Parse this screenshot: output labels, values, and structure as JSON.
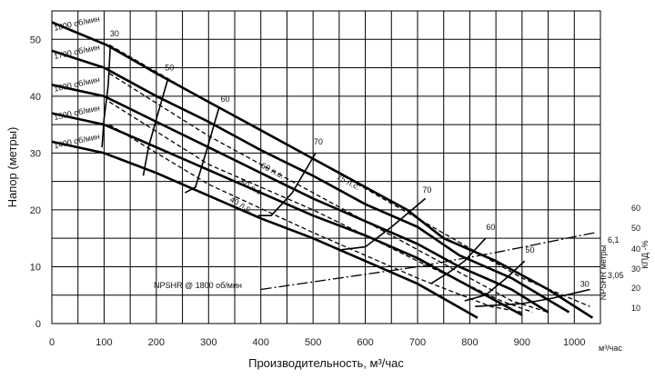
{
  "chart_data": {
    "type": "line",
    "title": "",
    "xlabel": "Производительность, м³/час",
    "ylabel": "Напор (метры)",
    "xlim": [
      0,
      1050
    ],
    "ylim": [
      0,
      55
    ],
    "x_ticks": [
      "0",
      "100",
      "200",
      "300",
      "400",
      "500",
      "600",
      "700",
      "800",
      "900",
      "1000"
    ],
    "y_ticks": [
      "0",
      "10",
      "20",
      "30",
      "40",
      "50"
    ],
    "x_unit_label": "м³/час",
    "right_axis_label": "КПД -%",
    "right_axis_ticks": [
      "10",
      "20",
      "30",
      "40",
      "50",
      "60"
    ],
    "npshr_axis_label": "NPSHR метры",
    "npshr_ticks": [
      "3,05",
      "6,1"
    ],
    "grid": true,
    "speed_curves": [
      {
        "name": "1800 об/мин",
        "points": [
          [
            0,
            53
          ],
          [
            105,
            49
          ],
          [
            200,
            44
          ],
          [
            300,
            39
          ],
          [
            400,
            34
          ],
          [
            500,
            29
          ],
          [
            600,
            24
          ],
          [
            680,
            20
          ],
          [
            750,
            15
          ],
          [
            850,
            11
          ],
          [
            950,
            6
          ],
          [
            1035,
            1
          ]
        ]
      },
      {
        "name": "1700 об/мин",
        "points": [
          [
            0,
            48
          ],
          [
            100,
            45
          ],
          [
            200,
            40
          ],
          [
            300,
            35.5
          ],
          [
            400,
            30.5
          ],
          [
            500,
            26
          ],
          [
            600,
            21
          ],
          [
            700,
            17
          ],
          [
            780,
            12
          ],
          [
            880,
            8
          ],
          [
            990,
            2
          ]
        ]
      },
      {
        "name": "1600 об/мин",
        "points": [
          [
            0,
            42
          ],
          [
            100,
            40
          ],
          [
            200,
            35.5
          ],
          [
            300,
            31
          ],
          [
            400,
            26.5
          ],
          [
            500,
            22
          ],
          [
            600,
            18
          ],
          [
            700,
            14
          ],
          [
            780,
            10
          ],
          [
            880,
            6
          ],
          [
            950,
            2
          ]
        ]
      },
      {
        "name": "1500 об/мин",
        "points": [
          [
            0,
            37
          ],
          [
            100,
            35
          ],
          [
            200,
            31
          ],
          [
            300,
            27
          ],
          [
            400,
            23
          ],
          [
            500,
            19
          ],
          [
            600,
            15.5
          ],
          [
            700,
            11.5
          ],
          [
            780,
            7.5
          ],
          [
            900,
            1.5
          ]
        ]
      },
      {
        "name": "1400 об/мин",
        "points": [
          [
            0,
            32
          ],
          [
            100,
            30
          ],
          [
            200,
            26.5
          ],
          [
            300,
            22.5
          ],
          [
            400,
            18.5
          ],
          [
            500,
            15
          ],
          [
            600,
            11
          ],
          [
            700,
            7
          ],
          [
            815,
            1
          ]
        ]
      }
    ],
    "power_lines": [
      {
        "name": "75 л.с.",
        "points": [
          [
            110,
            49
          ],
          [
            300,
            39
          ],
          [
            500,
            29
          ],
          [
            700,
            18.5
          ],
          [
            900,
            8
          ],
          [
            1030,
            3
          ]
        ]
      },
      {
        "name": "60 л.с.",
        "points": [
          [
            110,
            44
          ],
          [
            300,
            33
          ],
          [
            500,
            23
          ],
          [
            700,
            13
          ],
          [
            880,
            4
          ],
          [
            950,
            2
          ]
        ]
      },
      {
        "name": "50 л.с.",
        "points": [
          [
            110,
            39
          ],
          [
            300,
            28
          ],
          [
            500,
            20
          ],
          [
            700,
            11
          ],
          [
            860,
            4
          ],
          [
            920,
            2
          ]
        ]
      },
      {
        "name": "40 л.с.",
        "points": [
          [
            110,
            35
          ],
          [
            300,
            24.5
          ],
          [
            500,
            16
          ],
          [
            700,
            8
          ],
          [
            840,
            3
          ],
          [
            900,
            2
          ]
        ]
      }
    ],
    "efficiency_curves": [
      {
        "name": "30",
        "points": [
          [
            112,
            49
          ],
          [
            108,
            42
          ],
          [
            100,
            36
          ],
          [
            96,
            31
          ]
        ]
      },
      {
        "name": "50",
        "points": [
          [
            222,
            43
          ],
          [
            200,
            36
          ],
          [
            185,
            31
          ],
          [
            175,
            26
          ]
        ]
      },
      {
        "name": "60",
        "points": [
          [
            320,
            38
          ],
          [
            298,
            31
          ],
          [
            275,
            24
          ],
          [
            255,
            23
          ]
        ]
      },
      {
        "name": "70",
        "points": [
          [
            505,
            30
          ],
          [
            460,
            23
          ],
          [
            420,
            19
          ],
          [
            395,
            19
          ]
        ]
      },
      {
        "name": "70",
        "points": [
          [
            715,
            22
          ],
          [
            650,
            17
          ],
          [
            600,
            13.5
          ],
          [
            555,
            13
          ]
        ]
      },
      {
        "name": "60",
        "points": [
          [
            830,
            15
          ],
          [
            790,
            11
          ],
          [
            760,
            9
          ],
          [
            725,
            7
          ]
        ]
      },
      {
        "name": "50",
        "points": [
          [
            905,
            11
          ],
          [
            870,
            8
          ],
          [
            830,
            5
          ],
          [
            790,
            4
          ]
        ]
      },
      {
        "name": "30",
        "points": [
          [
            1030,
            6
          ],
          [
            960,
            4.5
          ],
          [
            900,
            3.5
          ],
          [
            810,
            3
          ]
        ]
      }
    ],
    "npshr_curve": {
      "name": "NPSHR @ 1800 об/мин",
      "points": [
        [
          400,
          6
        ],
        [
          550,
          8
        ],
        [
          700,
          10
        ],
        [
          850,
          12.5
        ],
        [
          1040,
          16
        ]
      ]
    },
    "annotations": [
      "1800 об/мин",
      "1700 об/мин",
      "1600 об/мин",
      "1500 об/мин",
      "1400 об/мин",
      "30",
      "50",
      "60",
      "70",
      "70",
      "60",
      "50",
      "30",
      "75 л.с.",
      "60 л.с.",
      "50 л.с.",
      "40 л.с.",
      "NPSHR @ 1800 об/мин"
    ]
  }
}
